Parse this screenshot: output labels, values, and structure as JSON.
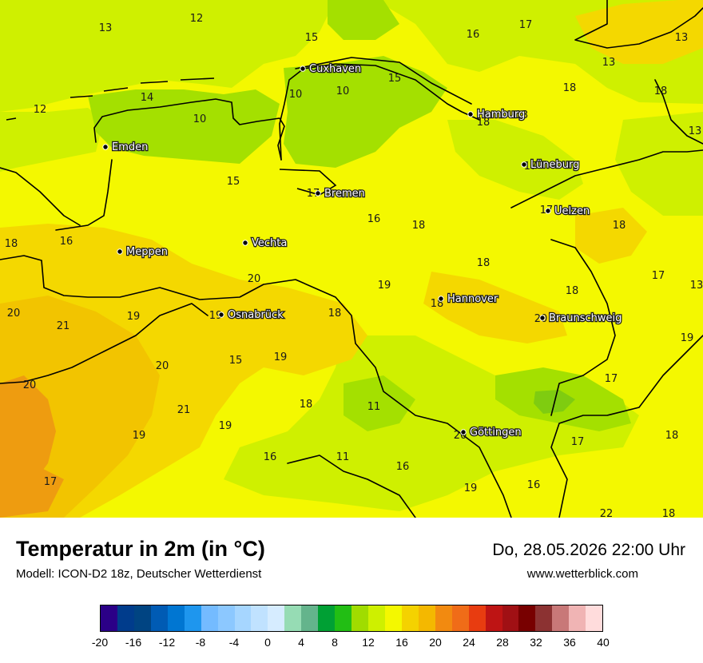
{
  "title": "Temperatur in 2m (in °C)",
  "subtitle": "Modell: ICON-D2 18z, Deutscher Wetterdienst",
  "datetime": "Do, 28.05.2026 22:00 Uhr",
  "website": "www.wetterblick.com",
  "cities": [
    {
      "name": "Cuxhaven"
    },
    {
      "name": "Hamburg"
    },
    {
      "name": "Emden"
    },
    {
      "name": "Lüneburg"
    },
    {
      "name": "Bremen"
    },
    {
      "name": "Uelzen"
    },
    {
      "name": "Vechta"
    },
    {
      "name": "Meppen"
    },
    {
      "name": "Hannover"
    },
    {
      "name": "Osnabrück"
    },
    {
      "name": "Braunschweig"
    },
    {
      "name": "Göttingen"
    }
  ],
  "values": [
    "13",
    "12",
    "15",
    "16",
    "17",
    "13",
    "13",
    "15",
    "10",
    "10",
    "18",
    "18",
    "12",
    "14",
    "10",
    "18",
    "13",
    "13",
    "17",
    "15",
    "17",
    "17",
    "18",
    "18",
    "16",
    "16",
    "18",
    "18",
    "20",
    "19",
    "18",
    "17",
    "13",
    "20",
    "19",
    "19",
    "18",
    "18",
    "20",
    "21",
    "20",
    "19",
    "19",
    "15",
    "20",
    "17",
    "21",
    "19",
    "18",
    "11",
    "19",
    "20",
    "17",
    "18",
    "16",
    "11",
    "16",
    "19",
    "16",
    "17",
    "22",
    "18",
    "17"
  ],
  "colors": {
    "map_base": "#f4f800",
    "yellow_green": "#cff000",
    "light_green": "#a4e000",
    "green": "#7fcc10",
    "warm_yellow": "#f4d800",
    "gold": "#f2c400",
    "orange": "#ee9c10",
    "border": "#000000"
  },
  "legend": {
    "colors": [
      "#2b0087",
      "#003c8c",
      "#004482",
      "#005bb4",
      "#0076d2",
      "#1e96ee",
      "#74bbff",
      "#8cc8ff",
      "#a6d6ff",
      "#c0e2ff",
      "#d6ecff",
      "#96dcb4",
      "#64b48c",
      "#00a034",
      "#22be14",
      "#a0dc00",
      "#cef000",
      "#f4f800",
      "#f4d200",
      "#f4b800",
      "#f28a10",
      "#f06c18",
      "#e83c10",
      "#be1414",
      "#a01014",
      "#780000",
      "#8c3232",
      "#c87878",
      "#f0b4b4",
      "#ffdcdc"
    ],
    "ticks": [
      "-20",
      "-16",
      "-12",
      "-8",
      "-4",
      "0",
      "4",
      "8",
      "12",
      "16",
      "20",
      "24",
      "28",
      "32",
      "36",
      "40"
    ]
  }
}
